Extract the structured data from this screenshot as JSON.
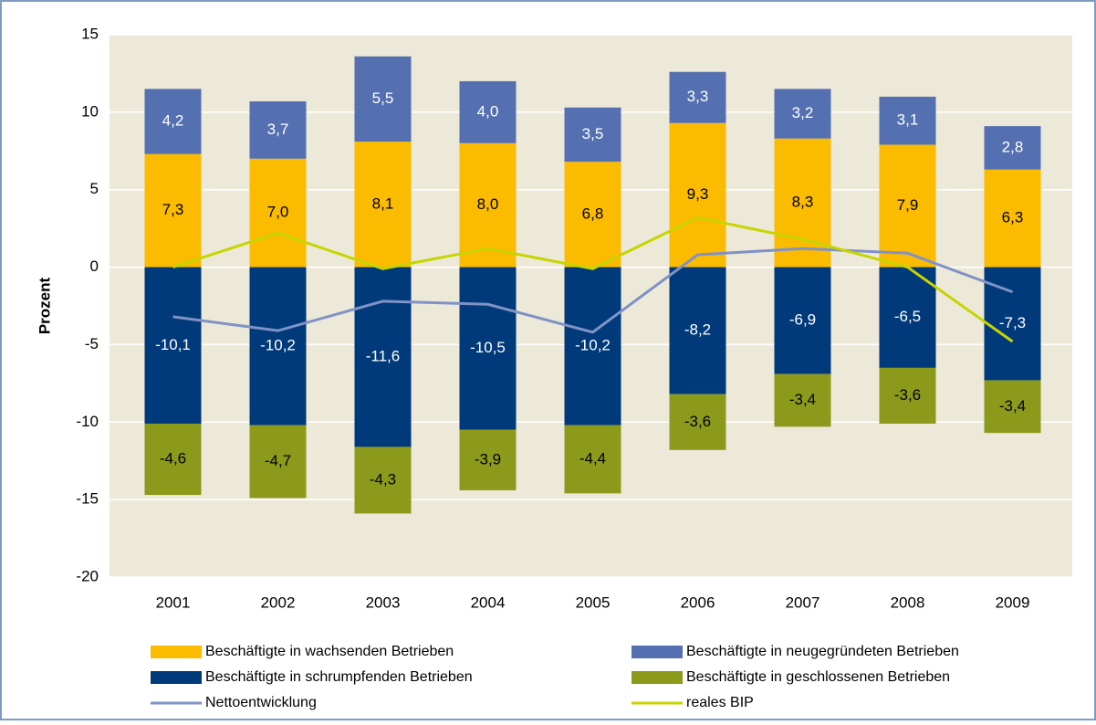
{
  "chart_data": {
    "type": "bar",
    "stacked": true,
    "ylabel": "Prozent",
    "categories": [
      "2001",
      "2002",
      "2003",
      "2004",
      "2005",
      "2006",
      "2007",
      "2008",
      "2009"
    ],
    "ylim": [
      -20,
      15
    ],
    "yticks": [
      -20,
      -15,
      -10,
      -5,
      0,
      5,
      10,
      15
    ],
    "grid": true,
    "series": [
      {
        "name": "Beschäftigte in wachsenden Betrieben",
        "type": "bar",
        "color": "#fbbc00",
        "values": [
          7.3,
          7.0,
          8.1,
          8.0,
          6.8,
          9.3,
          8.3,
          7.9,
          6.3
        ],
        "value_labels": [
          "7,3",
          "7,0",
          "8,1",
          "8,0",
          "6,8",
          "9,3",
          "8,3",
          "7,9",
          "6,3"
        ]
      },
      {
        "name": "Beschäftigte in neugegründeten Betrieben",
        "type": "bar",
        "color": "#5470b0",
        "values": [
          4.2,
          3.7,
          5.5,
          4.0,
          3.5,
          3.3,
          3.2,
          3.1,
          2.8
        ],
        "value_labels": [
          "4,2",
          "3,7",
          "5,5",
          "4,0",
          "3,5",
          "3,3",
          "3,2",
          "3,1",
          "2,8"
        ]
      },
      {
        "name": "Beschäftigte in schrumpfenden Betrieben",
        "type": "bar",
        "color": "#003a7a",
        "values": [
          -10.1,
          -10.2,
          -11.6,
          -10.5,
          -10.2,
          -8.2,
          -6.9,
          -6.5,
          -7.3
        ],
        "value_labels": [
          "-10,1",
          "-10,2",
          "-11,6",
          "-10,5",
          "-10,2",
          "-8,2",
          "-6,9",
          "-6,5",
          "-7,3"
        ]
      },
      {
        "name": "Beschäftigte in geschlossenen Betrieben",
        "type": "bar",
        "color": "#8c9a1c",
        "values": [
          -4.6,
          -4.7,
          -4.3,
          -3.9,
          -4.4,
          -3.6,
          -3.4,
          -3.6,
          -3.4
        ],
        "value_labels": [
          "-4,6",
          "-4,7",
          "-4,3",
          "-3,9",
          "-4,4",
          "-3,6",
          "-3,4",
          "-3,6",
          "-3,4"
        ]
      },
      {
        "name": "Nettoentwicklung",
        "type": "line",
        "color": "#8092c6",
        "values": [
          -3.2,
          -4.1,
          -2.2,
          -2.4,
          -4.2,
          0.8,
          1.2,
          0.9,
          -1.6
        ]
      },
      {
        "name": "reales BIP",
        "type": "line",
        "color": "#c8d400",
        "values": [
          0.0,
          2.2,
          -0.1,
          1.2,
          -0.1,
          3.2,
          1.8,
          0.0,
          -4.8
        ]
      }
    ]
  }
}
